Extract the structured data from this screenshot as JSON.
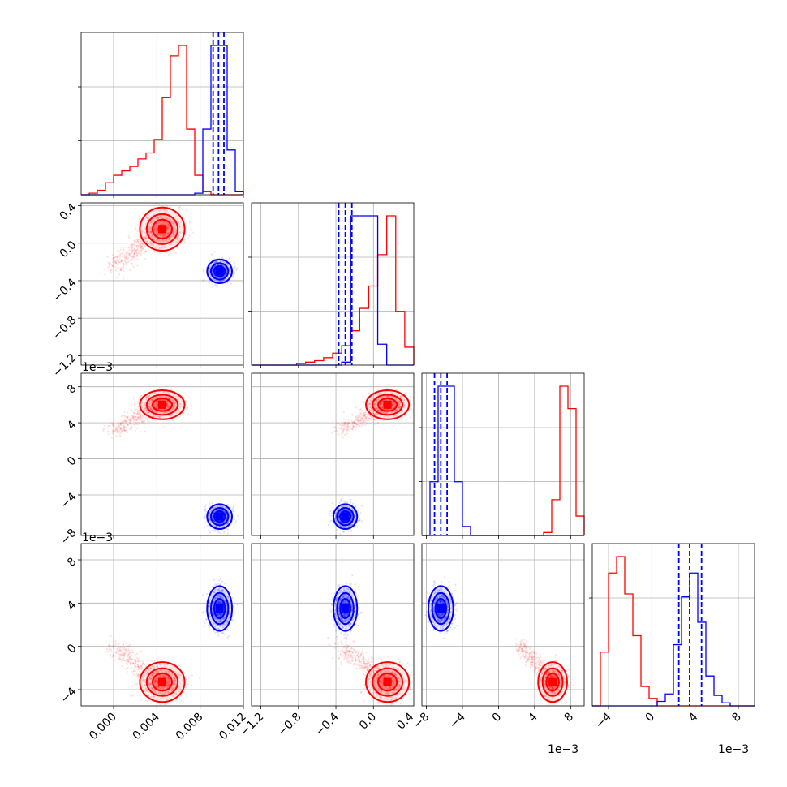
{
  "chart_data": {
    "type": "corner",
    "colors": {
      "series_a": "#ff0000",
      "series_b": "#0000ff"
    },
    "series": [
      {
        "color": "red",
        "means": [
          0.0045,
          0.15,
          0.006,
          -0.0033
        ]
      },
      {
        "color": "blue",
        "means": [
          0.0098,
          -0.3,
          -0.0064,
          0.0035
        ]
      }
    ],
    "offset_label": "1e−3",
    "axis_ranges": [
      [
        -0.003,
        0.012
      ],
      [
        -1.3,
        0.43
      ],
      [
        -0.0085,
        0.0095
      ],
      [
        -0.0055,
        0.0095
      ]
    ],
    "x_tick_labels": [
      [
        "0.000",
        "0.004",
        "0.008",
        "0.012"
      ],
      [
        "−1.2",
        "−0.8",
        "−0.4",
        "0.0",
        "0.4"
      ],
      [
        "−8",
        "−4",
        "0",
        "4",
        "8"
      ],
      [
        "−4",
        "0",
        "4",
        "8"
      ]
    ],
    "y_tick_labels": {
      "row1": [
        "0.4",
        "0.0",
        "−0.4",
        "−0.8",
        "−1.2"
      ],
      "row2": [
        "8",
        "4",
        "0",
        "−4",
        "−8"
      ],
      "row3": [
        "8",
        "4",
        "0",
        "−4"
      ]
    },
    "histograms": [
      {
        "range": [
          -0.003,
          0.012
        ],
        "red": [
          0,
          0.01,
          0.03,
          0.08,
          0.13,
          0.16,
          0.19,
          0.24,
          0.28,
          0.37,
          0.65,
          0.93,
          1.0,
          0.44,
          0.13,
          0.02,
          0,
          0,
          0,
          0
        ],
        "blue": [
          0,
          0,
          0,
          0,
          0,
          0,
          0,
          0,
          0,
          0,
          0,
          0,
          0,
          0,
          0.01,
          0.44,
          1.0,
          1.0,
          0.3,
          0.02
        ],
        "quantiles": [
          0.0092,
          0.0097,
          0.0102
        ]
      },
      {
        "range": [
          -1.3,
          0.43
        ],
        "red": [
          0,
          0,
          0,
          0,
          0,
          0.01,
          0.02,
          0.03,
          0.05,
          0.08,
          0.13,
          0.23,
          0.38,
          0.53,
          0.74,
          1.0,
          0.36,
          0.12
        ],
        "blue": [
          0,
          0,
          0,
          0,
          0,
          0,
          0,
          0,
          0,
          0,
          0.02,
          1.0,
          1.0,
          1.0,
          0.14,
          0,
          0,
          0
        ],
        "quantiles": [
          -0.37,
          -0.3,
          -0.23
        ]
      },
      {
        "range": [
          -0.0085,
          0.0095
        ],
        "red": [
          0,
          0,
          0,
          0,
          0,
          0,
          0,
          0,
          0,
          0,
          0,
          0,
          0,
          0,
          0,
          0.02,
          0.24,
          1.0,
          0.85,
          0.13
        ],
        "blue": [
          0,
          0.36,
          1.0,
          1.0,
          0.36,
          0.06,
          0,
          0,
          0,
          0,
          0,
          0,
          0,
          0,
          0,
          0,
          0,
          0,
          0,
          0
        ],
        "quantiles": [
          -0.0071,
          -0.0064,
          -0.0057
        ]
      },
      {
        "range": [
          -0.0055,
          0.0095
        ],
        "red": [
          0,
          0.36,
          0.89,
          1.0,
          0.75,
          0.47,
          0.13,
          0.05,
          0,
          0,
          0,
          0,
          0,
          0,
          0,
          0,
          0,
          0,
          0,
          0
        ],
        "blue": [
          0,
          0,
          0,
          0,
          0,
          0,
          0,
          0,
          0.03,
          0.08,
          0.41,
          0.73,
          0.89,
          0.56,
          0.2,
          0.07,
          0.02,
          0,
          0,
          0
        ],
        "quantiles": [
          0.0025,
          0.0035,
          0.0046
        ]
      }
    ]
  }
}
